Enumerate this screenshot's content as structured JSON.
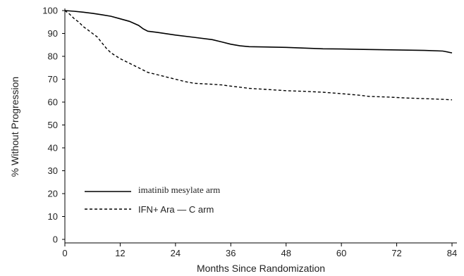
{
  "chart_data": {
    "type": "line",
    "title": "",
    "xlabel": "Months Since Randomization",
    "ylabel": "% Without Progression",
    "xlim": [
      0,
      84
    ],
    "ylim": [
      0,
      100
    ],
    "x_ticks": [
      0,
      12,
      24,
      36,
      48,
      60,
      72,
      84
    ],
    "y_ticks": [
      0,
      10,
      20,
      30,
      40,
      50,
      60,
      70,
      80,
      90,
      100
    ],
    "grid": false,
    "legend_placement": "bottom-left",
    "series": [
      {
        "name": "imatinib mesylate arm",
        "line_style": "solid",
        "color": "#000000",
        "x": [
          0,
          2,
          4,
          6,
          8,
          10,
          12,
          14,
          16,
          17,
          18,
          20,
          24,
          28,
          32,
          34,
          36,
          38,
          40,
          48,
          52,
          56,
          60,
          66,
          72,
          78,
          82,
          84
        ],
        "y": [
          100,
          99.7,
          99.3,
          98.8,
          98.2,
          97.5,
          96.4,
          95.3,
          93.5,
          92.0,
          91.0,
          90.5,
          89.3,
          88.3,
          87.3,
          86.3,
          85.3,
          84.6,
          84.2,
          83.9,
          83.6,
          83.3,
          83.2,
          83.0,
          82.8,
          82.6,
          82.3,
          81.5
        ]
      },
      {
        "name": "IFN+ Ara — C arm",
        "line_style": "dashed",
        "color": "#000000",
        "x": [
          0,
          1,
          2,
          3,
          4,
          5,
          6,
          7,
          8,
          9,
          10,
          12,
          14,
          16,
          18,
          20,
          22,
          24,
          26,
          28,
          30,
          32,
          34,
          36,
          40,
          44,
          48,
          52,
          56,
          60,
          64,
          66,
          70,
          74,
          78,
          82,
          84
        ],
        "y": [
          100,
          98.5,
          96.5,
          95,
          93,
          91.5,
          90,
          88.5,
          86,
          83.5,
          81.5,
          79,
          77,
          75,
          73,
          72,
          71,
          70,
          69,
          68.2,
          68,
          67.8,
          67.5,
          67,
          66,
          65.5,
          65,
          64.7,
          64.3,
          63.7,
          63,
          62.5,
          62.2,
          61.8,
          61.5,
          61.2,
          61
        ]
      }
    ]
  }
}
